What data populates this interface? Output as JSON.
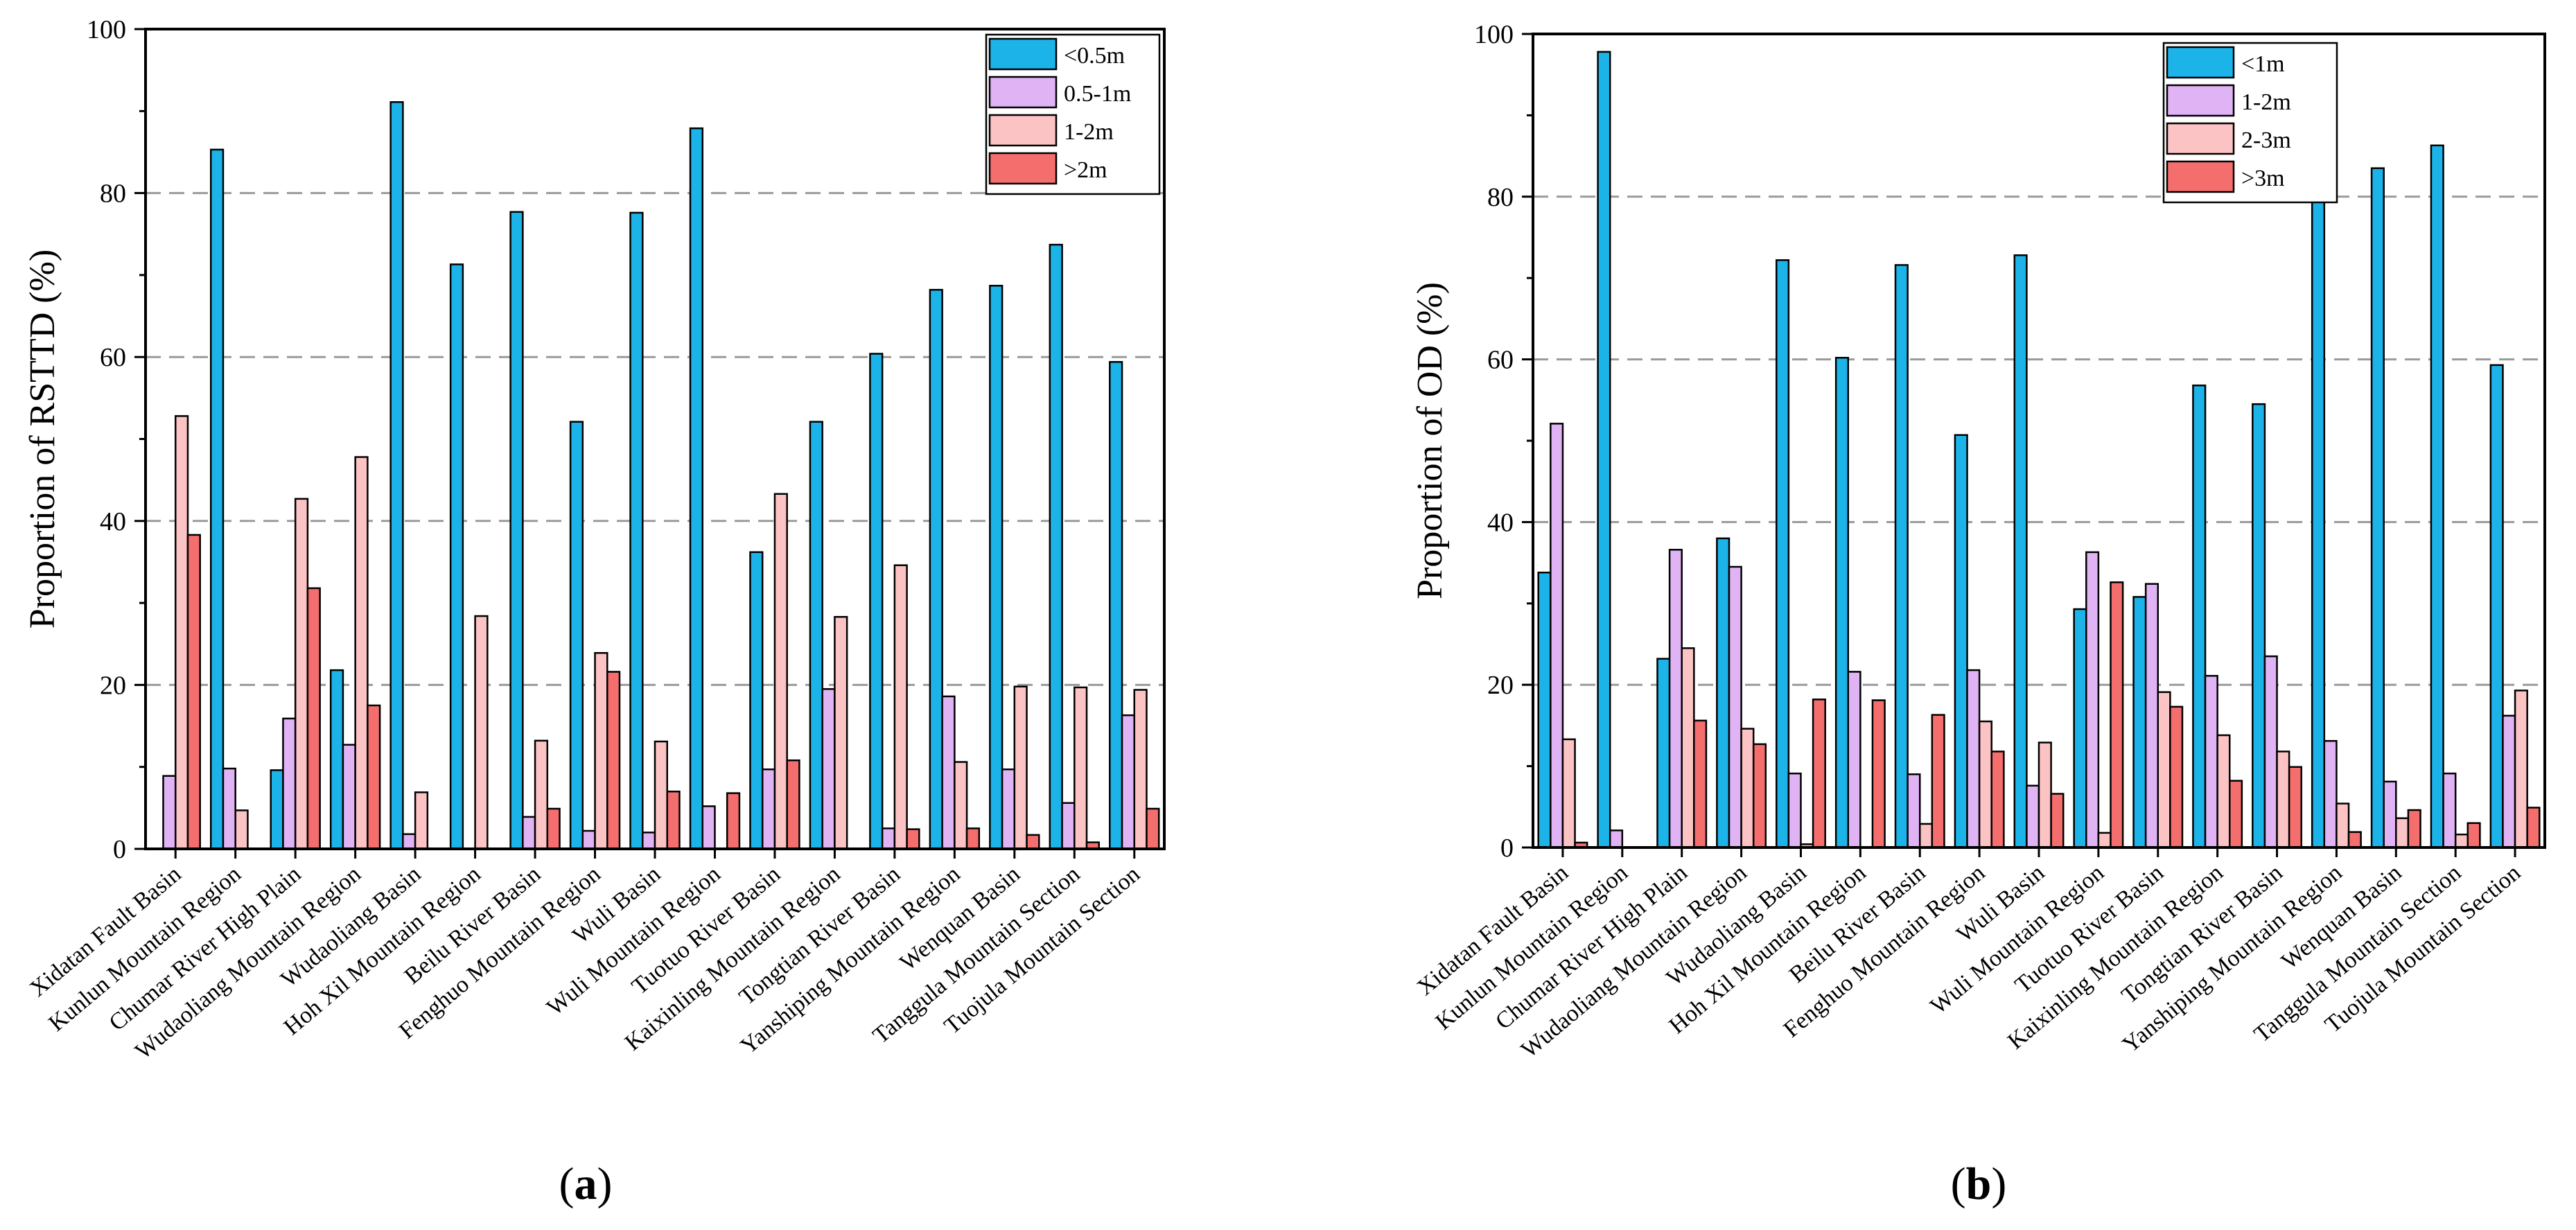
{
  "chart_data": [
    {
      "type": "bar",
      "panel_label": "(a)",
      "panel_letter": "a",
      "xlabel": "",
      "ylabel": "Proportion of RSTTD (%)",
      "ylim": [
        0,
        100
      ],
      "yticks": [
        "0",
        "20",
        "40",
        "60",
        "80",
        "100"
      ],
      "grid": true,
      "legend_position": "top-right",
      "categories": [
        "Xidatan Fault Basin",
        "Kunlun Mountain Region",
        "Chumar River High Plain",
        "Wudaoliang Mountain Region",
        "Wudaoliang Basin",
        "Hoh Xil Mountain Region",
        "Beilu River Basin",
        "Fenghuo Mountain Region",
        "Wuli Basin",
        "Wuli Mountain Region",
        "Tuotuo River Basin",
        "Kaixinling Mountain Region",
        "Tongtian River Basin",
        "Yanshiping Mountain Region",
        "Wenquan Basin",
        "Tanggula Mountain Section",
        "Tuojula Mountain Section"
      ],
      "series": [
        {
          "name": "<0.5m",
          "color": "#1cb4e8",
          "values": [
            0,
            85.3,
            9.6,
            21.8,
            91.1,
            71.3,
            77.7,
            52.1,
            77.6,
            87.9,
            36.2,
            52.1,
            60.4,
            68.2,
            68.7,
            73.7,
            59.4
          ]
        },
        {
          "name": "0.5-1m",
          "color": "#e0b3f5",
          "values": [
            8.9,
            9.8,
            15.9,
            12.7,
            1.8,
            0,
            3.9,
            2.2,
            2.0,
            5.2,
            9.7,
            19.5,
            2.5,
            18.6,
            9.7,
            5.6,
            16.3
          ]
        },
        {
          "name": "1-2m",
          "color": "#fbc3c3",
          "values": [
            52.8,
            4.7,
            42.7,
            47.8,
            6.9,
            28.4,
            13.2,
            23.9,
            13.1,
            0,
            43.3,
            28.3,
            34.6,
            10.6,
            19.8,
            19.7,
            19.4
          ]
        },
        {
          "name": ">2m",
          "color": "#f46e6e",
          "values": [
            38.3,
            0,
            31.8,
            17.5,
            0,
            0,
            4.9,
            21.6,
            7.0,
            6.8,
            10.8,
            0,
            2.4,
            2.5,
            1.7,
            0.8,
            4.9
          ]
        }
      ]
    },
    {
      "type": "bar",
      "panel_label": "(b)",
      "panel_letter": "b",
      "xlabel": "",
      "ylabel": "Proportion of OD (%)",
      "ylim": [
        0,
        100
      ],
      "yticks": [
        "0",
        "20",
        "40",
        "60",
        "80",
        "100"
      ],
      "grid": true,
      "legend_position": "top-center",
      "categories": [
        "Xidatan Fault Basin",
        "Kunlun Mountain Region",
        "Chumar River High Plain",
        "Wudaoliang Mountain Region",
        "Wudaoliang Basin",
        "Hoh Xil Mountain Region",
        "Beilu River Basin",
        "Fenghuo Mountain Region",
        "Wuli Basin",
        "Wuli Mountain Region",
        "Tuotuo River Basin",
        "Kaixinling Mountain Region",
        "Tongtian River Basin",
        "Yanshiping Mountain Region",
        "Wenquan Basin",
        "Tanggula Mountain Section",
        "Tuojula Mountain Section"
      ],
      "series": [
        {
          "name": "<1m",
          "color": "#1cb4e8",
          "values": [
            33.8,
            97.8,
            23.2,
            38.0,
            72.2,
            60.2,
            71.6,
            50.7,
            72.8,
            29.3,
            30.8,
            56.8,
            54.5,
            79.5,
            83.5,
            86.3,
            59.3
          ]
        },
        {
          "name": "1-2m",
          "color": "#e0b3f5",
          "values": [
            52.1,
            2.1,
            36.6,
            34.5,
            9.1,
            21.6,
            9.0,
            21.8,
            7.6,
            36.3,
            32.4,
            21.1,
            23.5,
            13.1,
            8.1,
            9.1,
            16.2
          ]
        },
        {
          "name": "2-3m",
          "color": "#fbc3c3",
          "values": [
            13.3,
            0,
            24.5,
            14.6,
            0.4,
            0,
            2.9,
            15.5,
            12.9,
            1.8,
            19.1,
            13.8,
            11.8,
            5.4,
            3.6,
            1.6,
            19.3
          ]
        },
        {
          "name": ">3m",
          "color": "#f46e6e",
          "values": [
            0.6,
            0,
            15.6,
            12.7,
            18.2,
            18.1,
            16.3,
            11.8,
            6.6,
            32.6,
            17.3,
            8.2,
            9.9,
            1.9,
            4.6,
            3.0,
            4.9
          ]
        }
      ]
    }
  ]
}
